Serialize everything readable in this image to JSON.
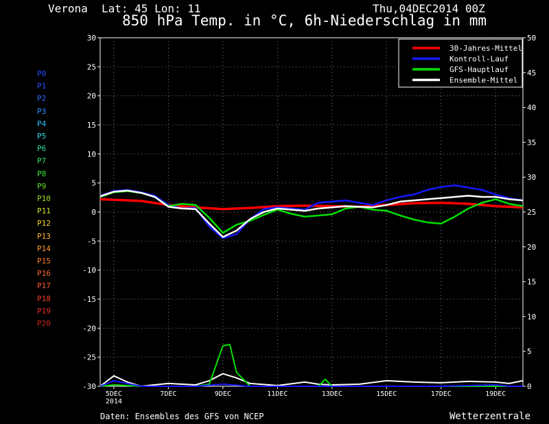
{
  "header": {
    "location": "Verona",
    "coords": "Lat: 45 Lon: 11",
    "run": "Thu,04DEC2014 00Z",
    "title": "850 hPa Temp. in °C, 6h-Niederschlag in mm"
  },
  "footer": {
    "source": "Daten: Ensembles des GFS von NCEP",
    "brand": "Wetterzentrale"
  },
  "members": [
    {
      "label": "P0",
      "color": "#2a4bff"
    },
    {
      "label": "P1",
      "color": "#2a4bff"
    },
    {
      "label": "P2",
      "color": "#2f6dff"
    },
    {
      "label": "P3",
      "color": "#2f93ff"
    },
    {
      "label": "P4",
      "color": "#2fc2ff"
    },
    {
      "label": "P5",
      "color": "#2fe0e0"
    },
    {
      "label": "P6",
      "color": "#2fe0a0"
    },
    {
      "label": "P7",
      "color": "#2fe060"
    },
    {
      "label": "P8",
      "color": "#3de03a"
    },
    {
      "label": "P9",
      "color": "#5ee02f"
    },
    {
      "label": "P10",
      "color": "#9de02f"
    },
    {
      "label": "P11",
      "color": "#d8e02f"
    },
    {
      "label": "P12",
      "color": "#ffd02f"
    },
    {
      "label": "P13",
      "color": "#ffb62f"
    },
    {
      "label": "P14",
      "color": "#ff9a2f"
    },
    {
      "label": "P15",
      "color": "#ff802f"
    },
    {
      "label": "P16",
      "color": "#ff6a2f"
    },
    {
      "label": "P17",
      "color": "#ff542f"
    },
    {
      "label": "P18",
      "color": "#f04025"
    },
    {
      "label": "P19",
      "color": "#e03020"
    },
    {
      "label": "P20",
      "color": "#c82818"
    }
  ],
  "chart_data": {
    "type": "line",
    "title": "850 hPa Temp. in °C, 6h-Niederschlag in mm",
    "x_unit": "days from 4DEC2014 00Z",
    "x_ticks": [
      {
        "x": 1,
        "label": "5DEC",
        "label2": "2014"
      },
      {
        "x": 3,
        "label": "7DEC"
      },
      {
        "x": 5,
        "label": "9DEC"
      },
      {
        "x": 7,
        "label": "11DEC"
      },
      {
        "x": 9,
        "label": "13DEC"
      },
      {
        "x": 11,
        "label": "15DEC"
      },
      {
        "x": 13,
        "label": "17DEC"
      },
      {
        "x": 15,
        "label": "19DEC"
      }
    ],
    "xlim": [
      0.5,
      16
    ],
    "y_left": {
      "label": "°C",
      "lim": [
        -30,
        30
      ],
      "ticks": [
        30,
        25,
        20,
        15,
        10,
        5,
        0,
        -5,
        -10,
        -15,
        -20,
        -25,
        -30
      ]
    },
    "y_right": {
      "label": "mm",
      "lim": [
        0,
        50
      ],
      "ticks": [
        50,
        45,
        40,
        35,
        30,
        25,
        20,
        15,
        10,
        5,
        0
      ]
    },
    "grid": true,
    "legend": {
      "placement": "top-right",
      "entries": [
        {
          "label": "30-Jahres-Mittel",
          "color": "#ff0000"
        },
        {
          "label": "Kontroll-Lauf",
          "color": "#1818ff"
        },
        {
          "label": "GFS-Hauptlauf",
          "color": "#00e000"
        },
        {
          "label": "Ensemble-Mittel",
          "color": "#ffffff"
        }
      ]
    },
    "series": [
      {
        "name": "30-Jahres-Mittel",
        "color": "#ff0000",
        "axis": "left",
        "points": [
          [
            0.5,
            2.2
          ],
          [
            2,
            1.9
          ],
          [
            3,
            1.2
          ],
          [
            4,
            0.8
          ],
          [
            5,
            0.5
          ],
          [
            6,
            0.7
          ],
          [
            7,
            1.0
          ],
          [
            8,
            1.1
          ],
          [
            9,
            1.0
          ],
          [
            10,
            0.9
          ],
          [
            11,
            1.2
          ],
          [
            12,
            1.5
          ],
          [
            13,
            1.6
          ],
          [
            14,
            1.4
          ],
          [
            15,
            1.0
          ],
          [
            16,
            0.8
          ]
        ]
      },
      {
        "name": "Kontroll-Lauf",
        "color": "#1818ff",
        "axis": "left",
        "points": [
          [
            0.5,
            2.8
          ],
          [
            1,
            3.6
          ],
          [
            1.5,
            3.8
          ],
          [
            2,
            3.4
          ],
          [
            2.5,
            2.8
          ],
          [
            3,
            1.2
          ],
          [
            3.5,
            0.6
          ],
          [
            4,
            0.7
          ],
          [
            4.5,
            -2.5
          ],
          [
            5,
            -4.5
          ],
          [
            5.5,
            -3.8
          ],
          [
            6,
            -1.2
          ],
          [
            6.5,
            0.5
          ],
          [
            7,
            0.8
          ],
          [
            7.5,
            0.6
          ],
          [
            8,
            0.4
          ],
          [
            8.5,
            1.6
          ],
          [
            9,
            1.8
          ],
          [
            9.5,
            2.0
          ],
          [
            10,
            1.6
          ],
          [
            10.5,
            1.2
          ],
          [
            11,
            2.0
          ],
          [
            11.5,
            2.6
          ],
          [
            12,
            3.0
          ],
          [
            12.5,
            3.8
          ],
          [
            13,
            4.3
          ],
          [
            13.5,
            4.6
          ],
          [
            14,
            4.2
          ],
          [
            14.5,
            3.8
          ],
          [
            15,
            3.0
          ],
          [
            15.5,
            2.4
          ],
          [
            16,
            2.0
          ]
        ]
      },
      {
        "name": "GFS-Hauptlauf",
        "color": "#00e000",
        "axis": "left",
        "points": [
          [
            0.5,
            2.6
          ],
          [
            1,
            3.4
          ],
          [
            1.5,
            3.6
          ],
          [
            2,
            3.3
          ],
          [
            2.5,
            2.6
          ],
          [
            3,
            1.0
          ],
          [
            3.5,
            1.4
          ],
          [
            4,
            1.2
          ],
          [
            4.5,
            -1.0
          ],
          [
            5,
            -3.6
          ],
          [
            5.5,
            -2.2
          ],
          [
            6,
            -1.5
          ],
          [
            6.5,
            -0.5
          ],
          [
            7,
            0.4
          ],
          [
            7.5,
            -0.3
          ],
          [
            8,
            -0.8
          ],
          [
            8.5,
            -0.6
          ],
          [
            9,
            -0.4
          ],
          [
            9.5,
            0.6
          ],
          [
            10,
            0.9
          ],
          [
            10.5,
            0.4
          ],
          [
            11,
            0.2
          ],
          [
            11.5,
            -0.6
          ],
          [
            12,
            -1.3
          ],
          [
            12.5,
            -1.8
          ],
          [
            13,
            -2.0
          ],
          [
            13.5,
            -0.8
          ],
          [
            14,
            0.6
          ],
          [
            14.5,
            1.6
          ],
          [
            15,
            2.2
          ],
          [
            15.5,
            1.4
          ],
          [
            16,
            1.0
          ]
        ]
      },
      {
        "name": "Ensemble-Mittel",
        "color": "#ffffff",
        "axis": "left",
        "points": [
          [
            0.5,
            2.7
          ],
          [
            1,
            3.5
          ],
          [
            1.5,
            3.7
          ],
          [
            2,
            3.3
          ],
          [
            2.5,
            2.6
          ],
          [
            3,
            0.9
          ],
          [
            3.5,
            0.6
          ],
          [
            4,
            0.5
          ],
          [
            4.5,
            -2.0
          ],
          [
            5,
            -4.3
          ],
          [
            5.5,
            -3.2
          ],
          [
            6,
            -1.2
          ],
          [
            6.5,
            0.0
          ],
          [
            7,
            0.6
          ],
          [
            7.5,
            0.4
          ],
          [
            8,
            0.2
          ],
          [
            8.5,
            0.6
          ],
          [
            9,
            0.8
          ],
          [
            9.5,
            1.0
          ],
          [
            10,
            0.9
          ],
          [
            10.5,
            0.8
          ],
          [
            11,
            1.2
          ],
          [
            11.5,
            1.8
          ],
          [
            12,
            2.0
          ],
          [
            12.5,
            2.2
          ],
          [
            13,
            2.4
          ],
          [
            13.5,
            2.6
          ],
          [
            14,
            2.8
          ],
          [
            14.5,
            2.6
          ],
          [
            15,
            2.6
          ],
          [
            15.5,
            2.2
          ],
          [
            16,
            2.0
          ]
        ]
      },
      {
        "name": "Ensemble-Mittel",
        "color": "#ffffff",
        "axis": "right",
        "points": [
          [
            0.5,
            0
          ],
          [
            1,
            1.5
          ],
          [
            1.5,
            0.6
          ],
          [
            2,
            0
          ],
          [
            3,
            0.4
          ],
          [
            4,
            0.2
          ],
          [
            4.5,
            0.8
          ],
          [
            5,
            1.8
          ],
          [
            5.5,
            1.2
          ],
          [
            6,
            0.4
          ],
          [
            7,
            0.1
          ],
          [
            8,
            0.6
          ],
          [
            8.5,
            0.3
          ],
          [
            9,
            0.2
          ],
          [
            10,
            0.3
          ],
          [
            11,
            0.8
          ],
          [
            12,
            0.6
          ],
          [
            13,
            0.5
          ],
          [
            14,
            0.7
          ],
          [
            15,
            0.6
          ],
          [
            15.5,
            0.4
          ],
          [
            16,
            0.8
          ]
        ]
      },
      {
        "name": "GFS-Hauptlauf",
        "color": "#00e000",
        "axis": "right",
        "points": [
          [
            0.5,
            0
          ],
          [
            1,
            0.2
          ],
          [
            2,
            0
          ],
          [
            3,
            0
          ],
          [
            4,
            0
          ],
          [
            4.5,
            0.3
          ],
          [
            5,
            5.8
          ],
          [
            5.25,
            6.0
          ],
          [
            5.5,
            2.0
          ],
          [
            6,
            0
          ],
          [
            8,
            0
          ],
          [
            8.5,
            0
          ],
          [
            8.75,
            1.0
          ],
          [
            9,
            0
          ],
          [
            10,
            0
          ],
          [
            12,
            0
          ],
          [
            14,
            0
          ],
          [
            16,
            0
          ]
        ]
      },
      {
        "name": "Kontroll-Lauf",
        "color": "#1818ff",
        "axis": "right",
        "points": [
          [
            0.5,
            0
          ],
          [
            1,
            0.8
          ],
          [
            2,
            0
          ],
          [
            3,
            0
          ],
          [
            4,
            0
          ],
          [
            5,
            0.3
          ],
          [
            6,
            0
          ],
          [
            7,
            0
          ],
          [
            8,
            0
          ],
          [
            9,
            0
          ],
          [
            10,
            0
          ],
          [
            11,
            0
          ],
          [
            12,
            0
          ],
          [
            13,
            0
          ],
          [
            14,
            0.1
          ],
          [
            15,
            0.2
          ],
          [
            15.5,
            0
          ],
          [
            16,
            0
          ]
        ]
      }
    ]
  }
}
